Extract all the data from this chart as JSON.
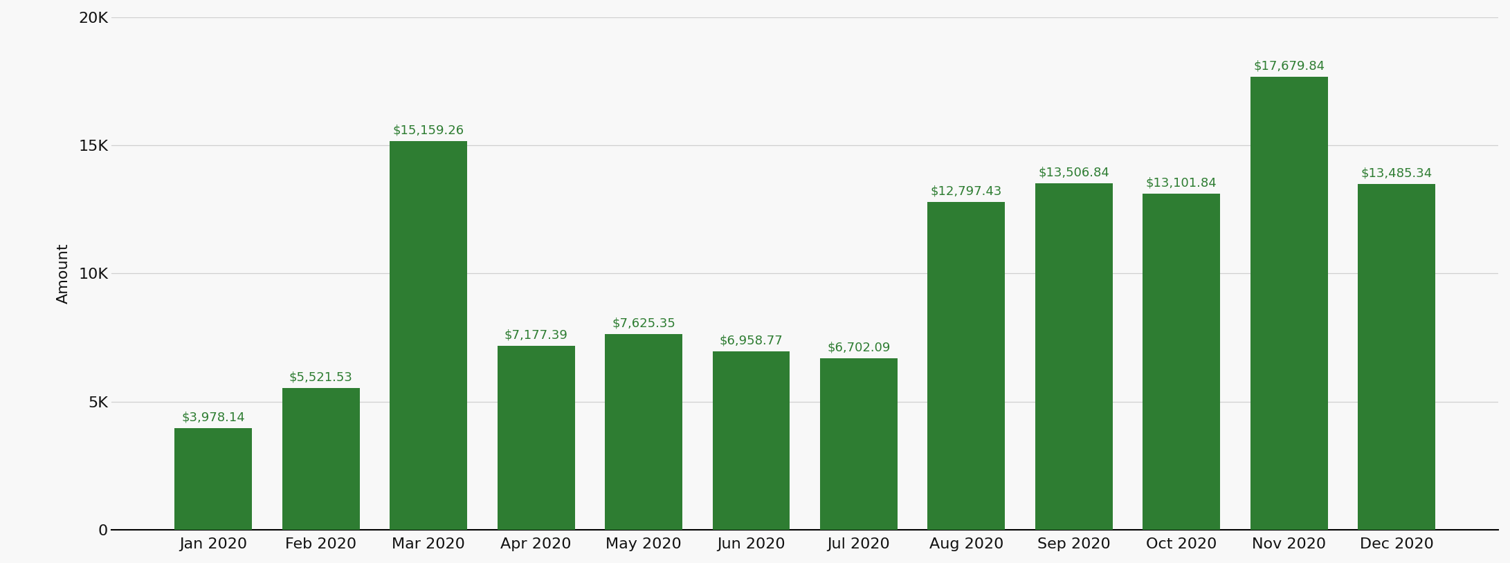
{
  "categories": [
    "Jan 2020",
    "Feb 2020",
    "Mar 2020",
    "Apr 2020",
    "May 2020",
    "Jun 2020",
    "Jul 2020",
    "Aug 2020",
    "Sep 2020",
    "Oct 2020",
    "Nov 2020",
    "Dec 2020"
  ],
  "values": [
    3978.14,
    5521.53,
    15159.26,
    7177.39,
    7625.35,
    6958.77,
    6702.09,
    12797.43,
    13506.84,
    13101.84,
    17679.84,
    13485.34
  ],
  "labels": [
    "$3,978.14",
    "$5,521.53",
    "$15,159.26",
    "$7,177.39",
    "$7,625.35",
    "$6,958.77",
    "$6,702.09",
    "$12,797.43",
    "$13,506.84",
    "$13,101.84",
    "$17,679.84",
    "$13,485.34"
  ],
  "bar_color": "#2e7d32",
  "label_color": "#2e7d32",
  "background_color": "#f8f8f8",
  "ylabel": "Amount",
  "ylim": [
    0,
    20000
  ],
  "yticks": [
    0,
    5000,
    10000,
    15000,
    20000
  ],
  "ytick_labels": [
    "0",
    "5K",
    "10K",
    "15K",
    "20K"
  ],
  "grid_color": "#d0d0d0",
  "axis_color": "#000000",
  "tick_color": "#111111",
  "label_fontsize": 13,
  "tick_fontsize": 16,
  "ylabel_fontsize": 16,
  "bar_width": 0.72
}
